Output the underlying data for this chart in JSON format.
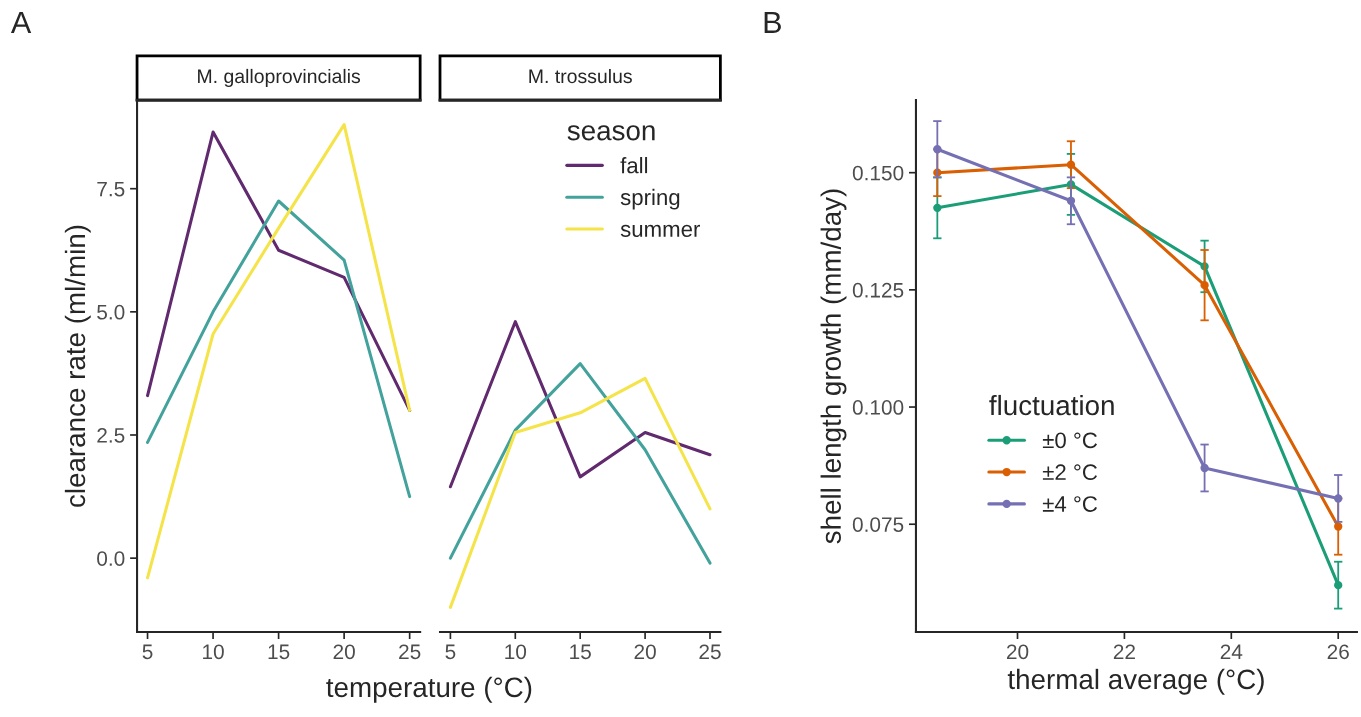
{
  "chart_data": [
    {
      "type": "line",
      "title": "M. galloprovincialis",
      "xlabel": "temperature (°C)",
      "ylabel": "clearance rate (ml/min)",
      "annotations": [
        "A"
      ],
      "x": [
        5,
        10,
        15,
        20,
        25
      ],
      "xlim": [
        4.2,
        25.8
      ],
      "xticks": [
        5,
        10,
        15,
        20,
        25
      ],
      "ylim": [
        -1.5,
        9.3
      ],
      "yticks": [
        {
          "value": 0,
          "label": "0.0"
        },
        2.5,
        {
          "value": 5,
          "label": "5.0"
        },
        7.5
      ],
      "grid": false,
      "legend": false,
      "series": [
        {
          "color": "#612a6f",
          "values": [
            3.3,
            8.65,
            6.25,
            5.7,
            3.0
          ]
        },
        {
          "color": "#43a39c",
          "values": [
            2.35,
            5.0,
            7.25,
            6.05,
            1.25
          ]
        },
        {
          "color": "#f5e449",
          "values": [
            -0.4,
            4.55,
            6.7,
            8.8,
            3.0
          ]
        }
      ]
    },
    {
      "type": "line",
      "title": "M. trossulus",
      "legend_title": "season",
      "x": [
        5,
        10,
        15,
        20,
        25
      ],
      "xlim": [
        4.2,
        25.8
      ],
      "xticks": [
        5,
        10,
        15,
        20,
        25
      ],
      "ylim": [
        -1.5,
        9.3
      ],
      "tick_labels": "x",
      "grid": false,
      "legend": "top right",
      "series": [
        {
          "name": "fall",
          "color": "#612a6f",
          "values": [
            1.45,
            4.8,
            1.65,
            2.55,
            2.1
          ]
        },
        {
          "name": "spring",
          "color": "#43a39c",
          "values": [
            0.0,
            2.6,
            3.95,
            2.2,
            -0.1
          ]
        },
        {
          "name": "summer",
          "color": "#f5e449",
          "values": [
            -1.0,
            2.55,
            2.95,
            3.65,
            1.0
          ]
        }
      ]
    },
    {
      "type": "line",
      "xlabel": "thermal average (°C)",
      "ylabel": "shell length growth (mm/day)",
      "legend_title": "fluctuation",
      "annotations": [
        "B"
      ],
      "x": [
        18.5,
        21,
        23.5,
        26
      ],
      "xlim": [
        18.1,
        26.35
      ],
      "xticks": [
        20,
        22,
        24,
        26
      ],
      "ylim": [
        0.052,
        0.1655
      ],
      "yticks": [
        0.075,
        {
          "value": 0.1,
          "label": "0.100"
        },
        0.125,
        {
          "value": 0.15,
          "label": "0.150"
        }
      ],
      "grid": false,
      "legend": "bottom left",
      "marker": "circle",
      "series": [
        {
          "name": "±0 °C",
          "color": "#1b9e77",
          "values": [
            0.1425,
            0.1475,
            0.13,
            0.062
          ],
          "errors": [
            0.0065,
            0.0065,
            0.0055,
            0.005
          ]
        },
        {
          "name": "±2 °C",
          "color": "#d95f02",
          "values": [
            0.15,
            0.1517,
            0.126,
            0.0745
          ],
          "errors": [
            0.005,
            0.005,
            0.0075,
            0.006
          ]
        },
        {
          "name": "±4 °C",
          "color": "#7570b3",
          "values": [
            0.155,
            0.144,
            0.087,
            0.0805
          ],
          "errors": [
            0.006,
            0.005,
            0.005,
            0.005
          ]
        }
      ]
    }
  ]
}
